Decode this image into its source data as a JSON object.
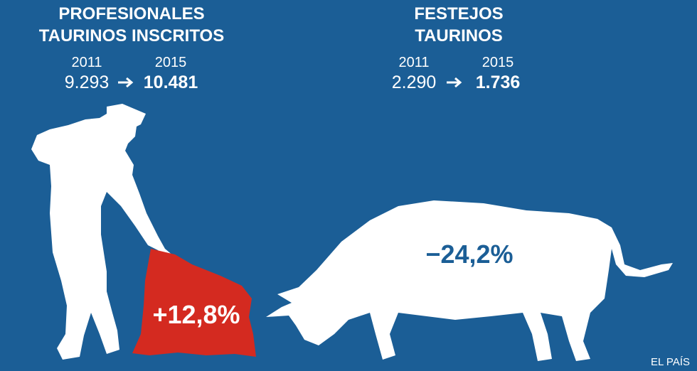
{
  "left": {
    "title_lines": [
      "PROFESIONALES",
      "TAURINOS INSCRITOS"
    ],
    "year_from": "2011",
    "year_to": "2015",
    "value_from": "9.293",
    "value_to": "10.481",
    "change": "+12,8%"
  },
  "right": {
    "title_lines": [
      "FESTEJOS",
      "TAURINOS"
    ],
    "year_from": "2011",
    "year_to": "2015",
    "value_from": "2.290",
    "value_to": "1.736",
    "change": "−24,2%"
  },
  "credit": "EL PAÍS"
}
